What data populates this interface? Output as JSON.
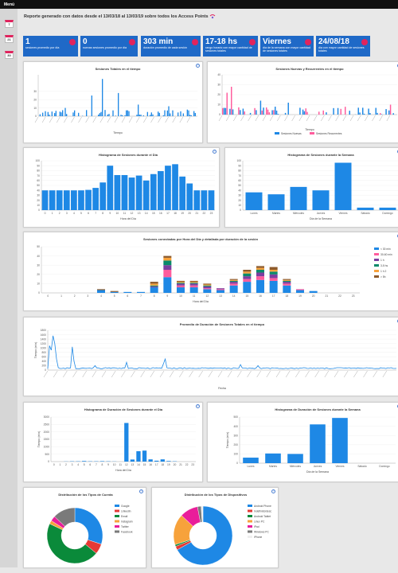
{
  "menu_label": "Menú",
  "sidebar": {
    "cal1_day": "7",
    "cal2_day": "21",
    "cal3_day": "30"
  },
  "report_title": "Reporte generado con datos desde el 13/03/18 al 13/03/19 sobre todos los Access Points",
  "kpis": [
    {
      "value": "1",
      "desc": "sesiones promedio por día"
    },
    {
      "value": "0",
      "desc": "nuevas sesiones promedio por día"
    },
    {
      "value": "303 min",
      "desc": "duración promedio de cada sesión"
    },
    {
      "value": "17-18 hs",
      "desc": "rango horario con mayor cantidad de sesiones totales"
    },
    {
      "value": "Viernes",
      "desc": "día de la semana con mayor cantidad de sesiones totales"
    },
    {
      "value": "24/08/18",
      "desc": "día con mayor cantidad de sesiones totales"
    }
  ],
  "colors": {
    "blue": "#1e88e5",
    "pink": "#ff5c9d",
    "kpi": "#1f69c7",
    "accent": "#e0245e"
  },
  "chart_data": [
    {
      "id": "sesiones-totales",
      "type": "bar",
      "title": "Sesiones Totales en el tiempo",
      "xlabel": "Tiempo",
      "ylim": [
        0,
        50
      ],
      "yticks": [
        0,
        10,
        20,
        30
      ]
    },
    {
      "id": "nuevas-recurrentes",
      "type": "bar",
      "title": "Sesiones Nuevas y Recurrentes en el tiempo",
      "xlabel": "Tiempo",
      "ylim": [
        0,
        40
      ],
      "yticks": [
        0,
        10,
        20,
        30,
        40
      ],
      "legend": [
        "Sesiones Nuevas",
        "Sesiones Recurrentes"
      ]
    },
    {
      "id": "hist-dia",
      "type": "bar",
      "title": "Histograma de Sesiones durante el Día",
      "xlabel": "Hora del Día",
      "categories": [
        "0",
        "1",
        "2",
        "3",
        "4",
        "5",
        "6",
        "7",
        "8",
        "9",
        "10",
        "11",
        "12",
        "13",
        "14",
        "15",
        "16",
        "17",
        "18",
        "19",
        "20",
        "21",
        "22",
        "23"
      ],
      "values": [
        40,
        40,
        40,
        40,
        40,
        40,
        41,
        45,
        56,
        90,
        71,
        71,
        66,
        70,
        60,
        73,
        79,
        90,
        93,
        68,
        54,
        40,
        40,
        40
      ],
      "ylim": [
        0,
        100
      ],
      "yticks": [
        0,
        10,
        20,
        30,
        40,
        50,
        60,
        70,
        80,
        90,
        100
      ]
    },
    {
      "id": "hist-semana",
      "type": "bar",
      "title": "Histograma de Sesiones durante la Semana",
      "xlabel": "Día de la Semana",
      "categories": [
        "Lunes",
        "Martes",
        "Miércoles",
        "Jueves",
        "Viernes",
        "Sábado",
        "Domingo"
      ],
      "values": [
        36,
        32,
        47,
        40,
        96,
        5,
        5
      ],
      "ylim": [
        0,
        100
      ],
      "yticks": [
        0,
        10,
        20,
        30,
        40,
        50,
        60,
        70,
        80,
        90,
        100
      ]
    },
    {
      "id": "sesiones-uso",
      "type": "bar",
      "title": "Sesiones conectadas por Hora del Día y detallada por duración de la sesión",
      "xlabel": "Hora del Día",
      "categories": [
        "0",
        "1",
        "2",
        "3",
        "4",
        "5",
        "6",
        "7",
        "8",
        "9",
        "10",
        "11",
        "12",
        "13",
        "14",
        "15",
        "16",
        "17",
        "18",
        "19",
        "20",
        "21",
        "22",
        "23"
      ],
      "series": [
        {
          "name": "< 30 min",
          "values": [
            0,
            0,
            0,
            0,
            3,
            1,
            1,
            1,
            6,
            17,
            6,
            6,
            4,
            3,
            8,
            12,
            14,
            13,
            8,
            3,
            2,
            0,
            0,
            0
          ]
        },
        {
          "name": "30-60 min",
          "values": [
            0,
            0,
            0,
            0,
            0,
            0,
            0,
            0,
            0,
            8,
            2,
            2,
            1,
            1,
            2,
            3,
            4,
            3,
            2,
            1,
            0,
            0,
            0,
            0
          ]
        },
        {
          "name": "1 h",
          "values": [
            0,
            0,
            0,
            0,
            0,
            0,
            0,
            0,
            1,
            5,
            2,
            2,
            2,
            1,
            2,
            3,
            4,
            4,
            2,
            0,
            0,
            0,
            0,
            0
          ]
        },
        {
          "name": "3-5 hs",
          "values": [
            0,
            0,
            0,
            0,
            0,
            0,
            0,
            0,
            1,
            5,
            1,
            1,
            1,
            0,
            1,
            3,
            3,
            3,
            1,
            0,
            0,
            0,
            0,
            0
          ]
        },
        {
          "name": "1 h 2",
          "values": [
            0,
            0,
            0,
            0,
            0,
            0,
            0,
            0,
            2,
            3,
            1,
            1,
            1,
            0,
            1,
            2,
            2,
            2,
            1,
            0,
            0,
            0,
            0,
            0
          ]
        },
        {
          "name": "> 5h",
          "values": [
            0,
            0,
            0,
            0,
            1,
            1,
            0,
            0,
            2,
            2,
            1,
            1,
            1,
            0,
            1,
            2,
            2,
            3,
            1,
            0,
            0,
            0,
            0,
            0
          ]
        }
      ],
      "ylim": [
        0,
        50
      ],
      "yticks": [
        0,
        10,
        20,
        30,
        40,
        50
      ]
    },
    {
      "id": "duracion-tiempo",
      "type": "line",
      "title": "Promedio de Duración de Sesiones Totales en el tiempo",
      "xlabel": "Fecha",
      "ylabel": "Tiempo (min)",
      "ylim": [
        0,
        1800
      ],
      "yticks": [
        0,
        200,
        400,
        600,
        800,
        1000,
        1200,
        1400,
        1600,
        1800
      ]
    },
    {
      "id": "duracion-dia",
      "type": "bar",
      "title": "Histograma de Duración de Sesiones durante el Día",
      "xlabel": "Hora del Día",
      "ylabel": "Tiempo (min)",
      "categories": [
        "0",
        "1",
        "2",
        "3",
        "4",
        "5",
        "6",
        "7",
        "8",
        "9",
        "10",
        "11",
        "12",
        "13",
        "14",
        "15",
        "16",
        "17",
        "18",
        "19",
        "20",
        "21",
        "22",
        "23"
      ],
      "values": [
        0,
        0,
        10,
        20,
        20,
        40,
        20,
        20,
        30,
        20,
        10,
        0,
        2600,
        140,
        700,
        740,
        150,
        60,
        150,
        40,
        20,
        0,
        0,
        0
      ],
      "ylim": [
        0,
        3000
      ],
      "yticks": [
        0,
        500,
        1000,
        1500,
        2000,
        2500,
        3000
      ]
    },
    {
      "id": "duracion-semana",
      "type": "bar",
      "title": "Histograma de Duración de Sesiones durante la Semana",
      "xlabel": "Día de la Semana",
      "ylabel": "Tiempo (min)",
      "categories": [
        "Lunes",
        "Martes",
        "Miércoles",
        "Jueves",
        "Viernes",
        "Sábado",
        "Domingo"
      ],
      "values": [
        60,
        105,
        100,
        420,
        490,
        0,
        0
      ],
      "ylim": [
        0,
        500
      ],
      "yticks": [
        0,
        100,
        200,
        300,
        400,
        500
      ]
    },
    {
      "id": "tipos-cuenta",
      "type": "pie",
      "title": "Distribución de los Tipos de Cuenta",
      "labels": [
        "Google",
        "LinkedIn",
        "Email",
        "Instagram",
        "Twitter",
        "Facebook"
      ],
      "values": [
        30,
        6,
        46,
        2,
        3,
        13
      ],
      "colors": [
        "#1e88e5",
        "#e53935",
        "#0a8a3a",
        "#f7a23b",
        "#e91e9a",
        "#7a7a7a"
      ]
    },
    {
      "id": "tipos-dispositivo",
      "type": "pie",
      "title": "Distribución de los Tipos de Dispositivos",
      "labels": [
        "Android Phone",
        "Indefinido/desc",
        "Android Tablet",
        "Linux PC",
        "iPad",
        "Windows PC",
        "iPhone"
      ],
      "values": [
        67,
        2,
        1,
        17,
        10,
        2,
        1
      ],
      "colors": [
        "#1e88e5",
        "#e53935",
        "#0a8a3a",
        "#f7a23b",
        "#e91e9a",
        "#7a7a7a",
        "#eeeeee"
      ]
    }
  ]
}
